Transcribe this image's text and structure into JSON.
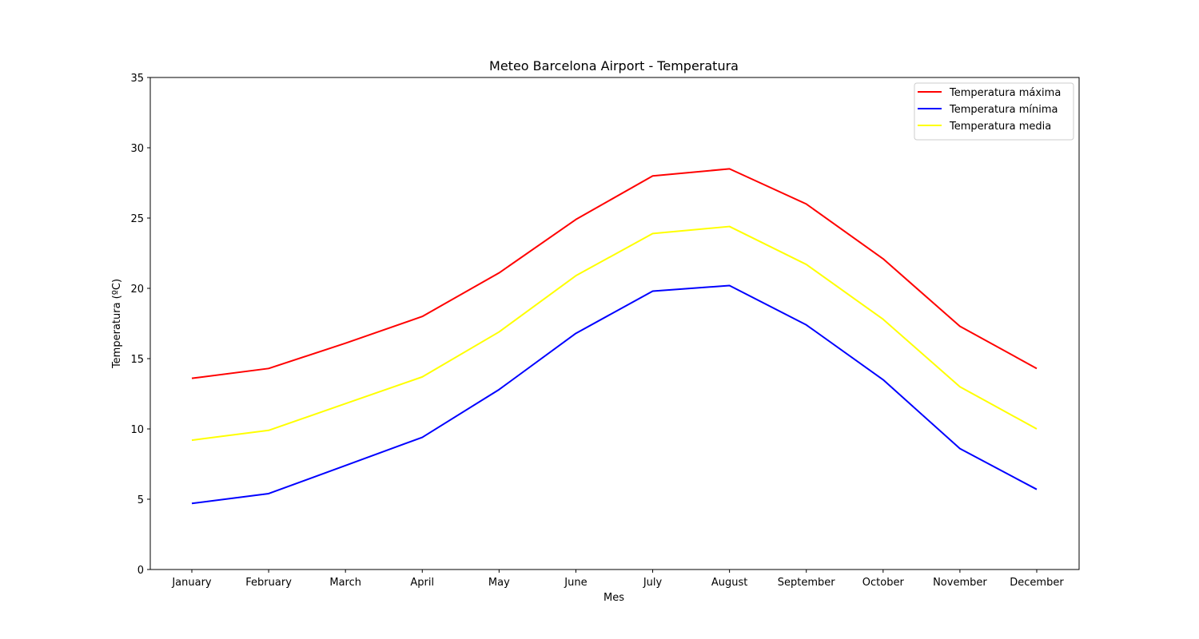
{
  "chart_data": {
    "type": "line",
    "title": "Meteo Barcelona Airport - Temperatura",
    "xlabel": "Mes",
    "ylabel": "Temperatura (ºC)",
    "ylim": [
      0,
      35
    ],
    "yticks": [
      0,
      5,
      10,
      15,
      20,
      25,
      30,
      35
    ],
    "grid": false,
    "legend_position": "top-right",
    "categories": [
      "January",
      "February",
      "March",
      "April",
      "May",
      "June",
      "July",
      "August",
      "September",
      "October",
      "November",
      "December"
    ],
    "series": [
      {
        "name": "Temperatura máxima",
        "color": "#ff0000",
        "values": [
          13.6,
          14.3,
          16.1,
          18.0,
          21.1,
          24.9,
          28.0,
          28.5,
          26.0,
          22.1,
          17.3,
          14.3
        ]
      },
      {
        "name": "Temperatura mínima",
        "color": "#0000ff",
        "values": [
          4.7,
          5.4,
          7.4,
          9.4,
          12.8,
          16.8,
          19.8,
          20.2,
          17.4,
          13.5,
          8.6,
          5.7
        ]
      },
      {
        "name": "Temperatura media",
        "color": "#ffff00",
        "values": [
          9.2,
          9.9,
          11.8,
          13.7,
          16.9,
          20.9,
          23.9,
          24.4,
          21.7,
          17.8,
          13.0,
          10.0
        ]
      }
    ]
  }
}
